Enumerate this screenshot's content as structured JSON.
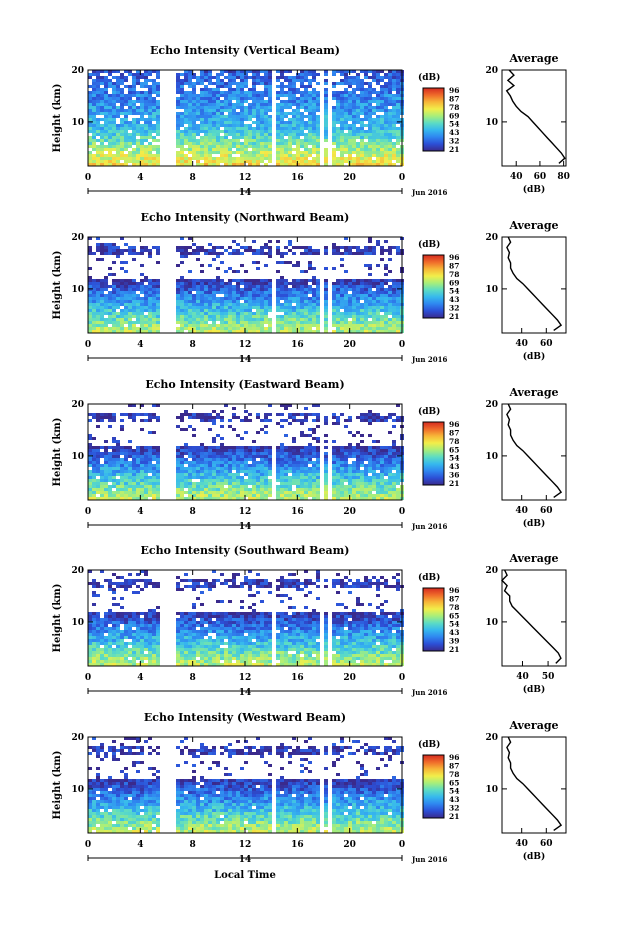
{
  "figure": {
    "xlabel": "Local Time",
    "ylabel": "Height (km)",
    "date_label": "Jun 2016",
    "day_label": "14",
    "avg_title": "Average",
    "avg_xlabel": "(dB)",
    "colorbar_unit": "(dB)",
    "colorbar_palette": [
      "#3a2a8c",
      "#2c4fd6",
      "#2f86f0",
      "#36b8ee",
      "#5cdcc4",
      "#a8ee7a",
      "#f2ee4a",
      "#f7b638",
      "#ef6a2a",
      "#d42a20"
    ],
    "gap_color": "#ffffff"
  },
  "chart_data": [
    {
      "type": "heatmap",
      "title": "Echo Intensity (Vertical Beam)",
      "x_ticks": [
        "0",
        "4",
        "8",
        "12",
        "16",
        "20",
        "0"
      ],
      "xlim": [
        0,
        24
      ],
      "y_ticks": [
        "20",
        "10"
      ],
      "ylim": [
        1.5,
        20
      ],
      "colorbar_ticks": [
        "96",
        "87",
        "78",
        "69",
        "54",
        "43",
        "32",
        "21"
      ],
      "data_gaps_hours": [
        [
          5.4,
          6.5
        ],
        [
          13.8,
          14.2
        ],
        [
          17.7,
          18.0
        ],
        [
          18.3,
          18.5
        ]
      ],
      "average_profile": {
        "x_ticks": [
          "40",
          "60",
          "80"
        ],
        "xlim": [
          28,
          82
        ],
        "y_ticks": [
          "20",
          "10"
        ],
        "height_km": [
          20,
          19,
          18,
          17,
          16,
          15,
          14,
          13,
          12,
          11,
          10,
          9,
          8,
          7,
          6,
          5,
          4,
          3,
          2
        ],
        "db": [
          34,
          38,
          33,
          38,
          32,
          35,
          37,
          40,
          44,
          50,
          54,
          58,
          62,
          66,
          70,
          74,
          78,
          81,
          76
        ]
      }
    },
    {
      "type": "heatmap",
      "title": "Echo Intensity (Northward Beam)",
      "x_ticks": [
        "0",
        "4",
        "8",
        "12",
        "16",
        "20",
        "0"
      ],
      "xlim": [
        0,
        24
      ],
      "y_ticks": [
        "20",
        "10"
      ],
      "ylim": [
        1.5,
        20
      ],
      "colorbar_ticks": [
        "96",
        "87",
        "78",
        "69",
        "54",
        "43",
        "32",
        "21"
      ],
      "data_gaps_hours": [
        [
          5.4,
          6.5
        ],
        [
          13.8,
          14.2
        ],
        [
          17.7,
          18.0
        ],
        [
          18.3,
          18.5
        ]
      ],
      "average_profile": {
        "x_ticks": [
          "40",
          "60"
        ],
        "xlim": [
          24,
          76
        ],
        "y_ticks": [
          "20",
          "10"
        ],
        "height_km": [
          20,
          19,
          18,
          17,
          16,
          15,
          14,
          13,
          12,
          11,
          10,
          9,
          8,
          7,
          6,
          5,
          4,
          3,
          2
        ],
        "db": [
          29,
          31,
          28,
          30,
          29,
          31,
          31,
          33,
          36,
          41,
          45,
          49,
          53,
          57,
          61,
          65,
          69,
          72,
          66
        ]
      }
    },
    {
      "type": "heatmap",
      "title": "Echo Intensity (Eastward Beam)",
      "x_ticks": [
        "0",
        "4",
        "8",
        "12",
        "16",
        "20",
        "0"
      ],
      "xlim": [
        0,
        24
      ],
      "y_ticks": [
        "20",
        "10"
      ],
      "ylim": [
        1.5,
        20
      ],
      "colorbar_ticks": [
        "96",
        "87",
        "78",
        "65",
        "54",
        "43",
        "36",
        "21"
      ],
      "data_gaps_hours": [
        [
          5.4,
          6.5
        ],
        [
          13.8,
          14.2
        ],
        [
          17.7,
          18.0
        ],
        [
          18.3,
          18.5
        ]
      ],
      "average_profile": {
        "x_ticks": [
          "40",
          "60"
        ],
        "xlim": [
          24,
          76
        ],
        "y_ticks": [
          "20",
          "10"
        ],
        "height_km": [
          20,
          19,
          18,
          17,
          16,
          15,
          14,
          13,
          12,
          11,
          10,
          9,
          8,
          7,
          6,
          5,
          4,
          3,
          2
        ],
        "db": [
          29,
          31,
          28,
          30,
          29,
          31,
          31,
          33,
          36,
          41,
          45,
          49,
          53,
          57,
          61,
          65,
          69,
          72,
          66
        ]
      }
    },
    {
      "type": "heatmap",
      "title": "Echo Intensity (Southward Beam)",
      "x_ticks": [
        "0",
        "4",
        "8",
        "12",
        "16",
        "20",
        "0"
      ],
      "xlim": [
        0,
        24
      ],
      "y_ticks": [
        "20",
        "10"
      ],
      "ylim": [
        1.5,
        20
      ],
      "colorbar_ticks": [
        "96",
        "87",
        "78",
        "65",
        "54",
        "43",
        "39",
        "21"
      ],
      "data_gaps_hours": [
        [
          5.4,
          6.5
        ],
        [
          13.8,
          14.2
        ],
        [
          17.7,
          18.0
        ],
        [
          18.3,
          18.5
        ]
      ],
      "average_profile": {
        "x_ticks": [
          "40",
          "50"
        ],
        "xlim": [
          32,
          57
        ],
        "y_ticks": [
          "20",
          "10"
        ],
        "height_km": [
          20,
          19,
          18,
          17,
          16,
          15,
          14,
          13,
          12,
          11,
          10,
          9,
          8,
          7,
          6,
          5,
          4,
          3,
          2
        ],
        "db": [
          33,
          34,
          32,
          34,
          33,
          35,
          35,
          36,
          38,
          40,
          42,
          44,
          46,
          48,
          50,
          52,
          54,
          55,
          53
        ]
      }
    },
    {
      "type": "heatmap",
      "title": "Echo Intensity (Westward Beam)",
      "x_ticks": [
        "0",
        "4",
        "8",
        "12",
        "16",
        "20",
        "0"
      ],
      "xlim": [
        0,
        24
      ],
      "y_ticks": [
        "20",
        "10"
      ],
      "ylim": [
        1.5,
        20
      ],
      "colorbar_ticks": [
        "96",
        "87",
        "78",
        "65",
        "54",
        "43",
        "32",
        "21"
      ],
      "data_gaps_hours": [
        [
          5.4,
          6.5
        ],
        [
          13.8,
          14.2
        ],
        [
          17.7,
          18.0
        ],
        [
          18.3,
          18.5
        ]
      ],
      "average_profile": {
        "x_ticks": [
          "40",
          "60"
        ],
        "xlim": [
          24,
          76
        ],
        "y_ticks": [
          "20",
          "10"
        ],
        "height_km": [
          20,
          19,
          18,
          17,
          16,
          15,
          14,
          13,
          12,
          11,
          10,
          9,
          8,
          7,
          6,
          5,
          4,
          3,
          2
        ],
        "db": [
          29,
          31,
          28,
          30,
          29,
          31,
          31,
          33,
          36,
          41,
          45,
          49,
          53,
          57,
          61,
          65,
          69,
          72,
          66
        ]
      }
    }
  ]
}
